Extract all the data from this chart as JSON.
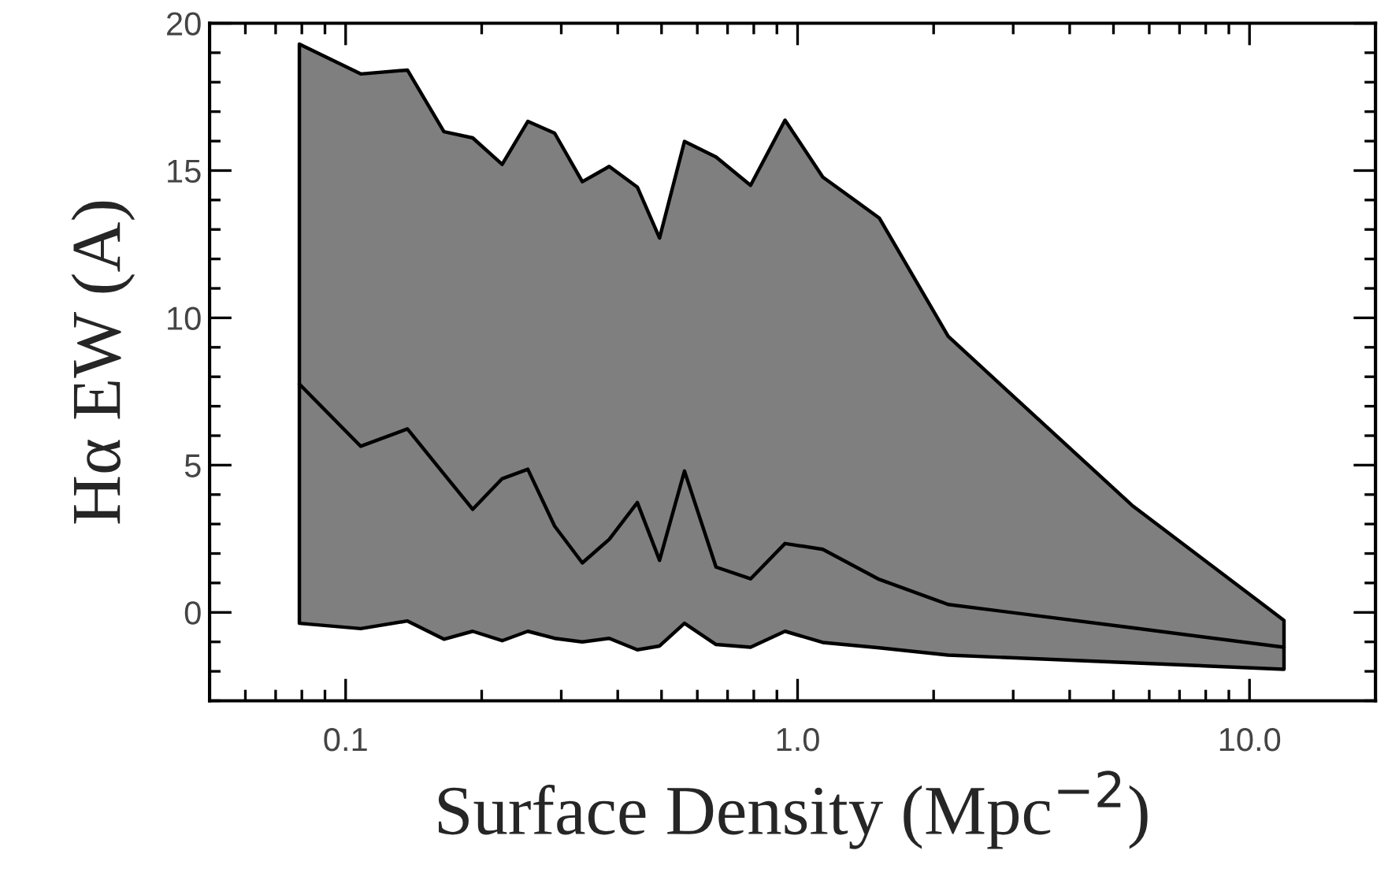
{
  "chart_data": {
    "type": "line",
    "xlabel": "Surface Density (Mpc$^{−2}$)",
    "ylabel": "Hα EW (A)",
    "x": [
      0.079,
      0.108,
      0.137,
      0.165,
      0.191,
      0.222,
      0.253,
      0.29,
      0.334,
      0.383,
      0.442,
      0.495,
      0.562,
      0.66,
      0.787,
      0.938,
      1.137,
      1.516,
      2.154,
      5.49,
      11.92
    ],
    "series": [
      {
        "color": "#000000",
        "values": [
          7.75,
          5.64,
          6.23,
          4.7,
          3.5,
          4.54,
          4.86,
          2.93,
          1.68,
          2.48,
          3.73,
          1.77,
          4.8,
          1.54,
          1.14,
          2.34,
          2.14,
          1.12,
          0.27,
          -0.52,
          -1.18
        ],
        "lower": [
          -0.37,
          -0.55,
          -0.29,
          -0.91,
          -0.64,
          -0.96,
          -0.64,
          -0.88,
          -1.0,
          -0.88,
          -1.27,
          -1.14,
          -0.37,
          -1.09,
          -1.18,
          -0.64,
          -1.02,
          -1.2,
          -1.45,
          -1.71,
          -1.93
        ],
        "upper": [
          19.29,
          18.28,
          18.41,
          16.32,
          16.11,
          15.21,
          16.67,
          16.27,
          14.62,
          15.14,
          14.44,
          12.71,
          15.99,
          15.46,
          14.5,
          16.71,
          14.78,
          13.39,
          9.37,
          3.64,
          -0.27
        ]
      }
    ],
    "log": "x",
    "xlim": [
      0.05,
      19
    ],
    "xticks": [
      {
        "value": 0.1,
        "label": "0.1"
      },
      {
        "value": 1,
        "label": "1.0"
      },
      {
        "value": 10,
        "label": "10.0"
      }
    ],
    "ylim": [
      -3,
      20
    ],
    "yticks": [
      0,
      5,
      10,
      15,
      20
    ],
    "grid": false,
    "legend": false,
    "marker": "none",
    "line_style": "solid"
  }
}
